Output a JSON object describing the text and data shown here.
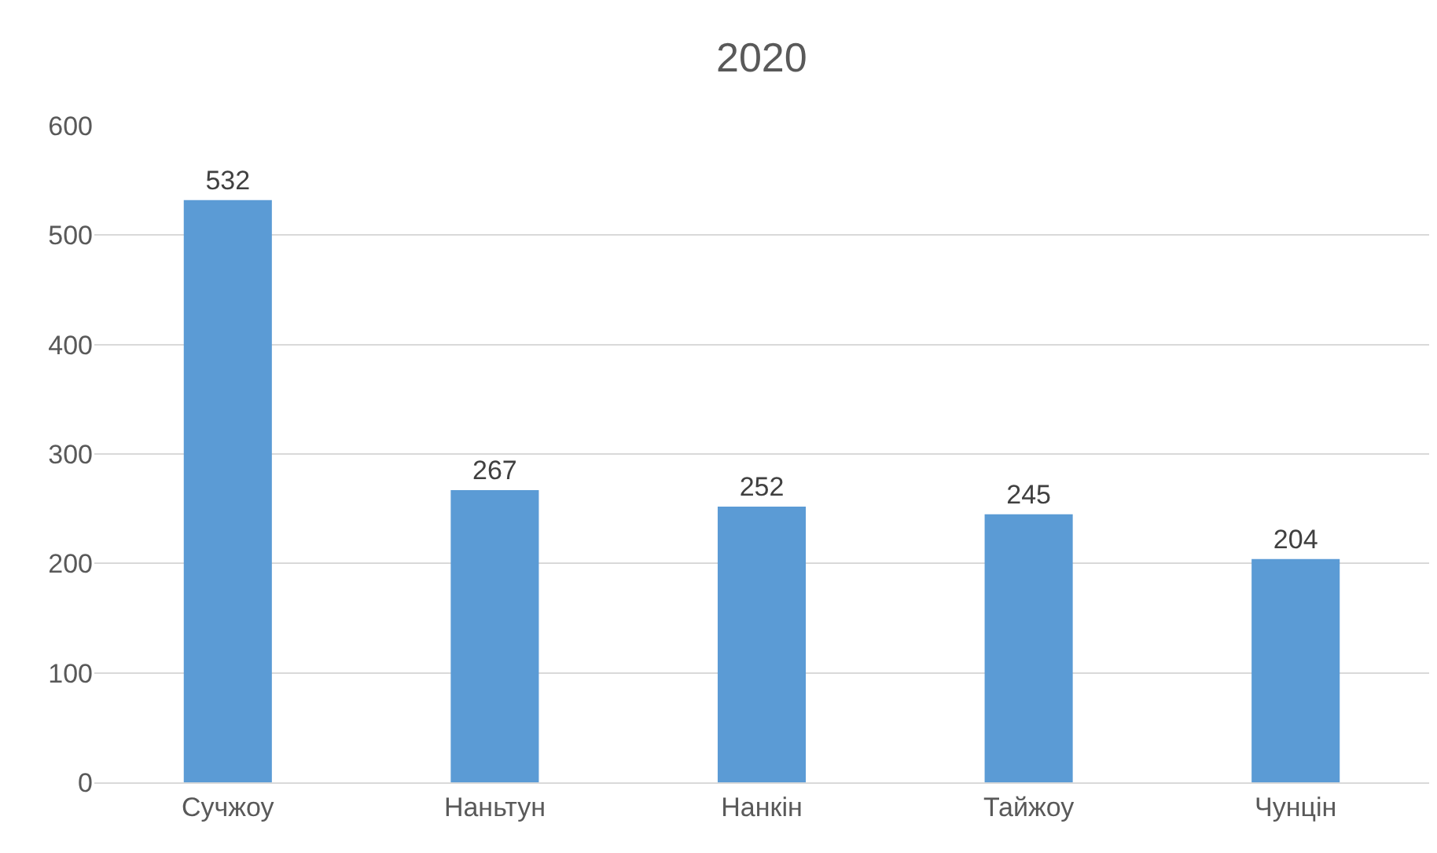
{
  "chart_data": {
    "type": "bar",
    "title": "2020",
    "categories": [
      "Сучжоу",
      "Наньтун",
      "Нанкін",
      "Тайжоу",
      "Чунцін"
    ],
    "values": [
      532,
      267,
      252,
      245,
      204
    ],
    "color": "#5b9bd5",
    "ylim": [
      0,
      600
    ],
    "yticks": [
      0,
      100,
      200,
      300,
      400,
      500,
      600
    ],
    "grid": "y",
    "data_labels": true
  }
}
